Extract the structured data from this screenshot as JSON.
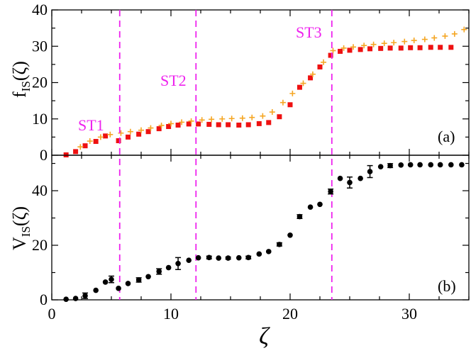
{
  "chart_data": [
    {
      "type": "scatter",
      "panel": "(a)",
      "ylabel": "f",
      "ylabel_sub": "IS",
      "ylabel_arg": "(ζ)",
      "xlim": [
        0,
        35
      ],
      "ylim": [
        0,
        40
      ],
      "yticks": [
        0,
        10,
        20,
        30,
        40
      ],
      "series": [
        {
          "name": "squares",
          "marker": "square",
          "color": "#ee1111",
          "x": [
            1.2,
            2.0,
            2.8,
            3.7,
            4.5,
            5.6,
            6.4,
            7.3,
            8.1,
            9.0,
            9.8,
            10.6,
            11.5,
            12.3,
            13.2,
            14.0,
            14.8,
            15.7,
            16.5,
            17.4,
            18.2,
            19.1,
            20.0,
            20.8,
            21.7,
            22.5,
            23.4,
            24.2,
            25.0,
            25.9,
            26.7,
            27.6,
            28.4,
            29.3,
            30.1,
            30.9,
            31.8,
            32.6,
            33.5
          ],
          "y": [
            0.1,
            1.0,
            2.6,
            3.8,
            5.3,
            4.0,
            5.0,
            5.8,
            6.5,
            7.3,
            7.9,
            8.3,
            8.6,
            8.6,
            8.5,
            8.4,
            8.4,
            8.3,
            8.4,
            8.7,
            9.0,
            10.6,
            13.9,
            18.7,
            21.3,
            24.3,
            27.5,
            28.6,
            28.9,
            29.1,
            29.3,
            29.4,
            29.5,
            29.5,
            29.6,
            29.6,
            29.7,
            29.7,
            29.7
          ]
        },
        {
          "name": "plus",
          "marker": "plus",
          "color": "#f5a623",
          "x": [
            2.4,
            3.2,
            4.1,
            4.9,
            5.8,
            6.6,
            7.5,
            8.3,
            9.2,
            10.0,
            10.9,
            11.7,
            12.6,
            13.4,
            14.3,
            15.1,
            16.0,
            16.8,
            17.7,
            18.5,
            19.4,
            20.2,
            21.1,
            21.9,
            22.8,
            23.6,
            24.5,
            25.3,
            26.2,
            27.0,
            27.9,
            28.7,
            29.6,
            30.4,
            31.3,
            32.1,
            33.0,
            33.8,
            34.6
          ],
          "y": [
            2.3,
            3.9,
            5.0,
            5.7,
            6.1,
            6.5,
            6.9,
            7.5,
            8.2,
            8.7,
            9.1,
            9.4,
            9.7,
            9.9,
            10.0,
            10.1,
            10.2,
            10.4,
            10.8,
            11.9,
            14.5,
            17.0,
            19.8,
            22.3,
            25.6,
            28.8,
            29.5,
            29.8,
            30.2,
            30.5,
            30.8,
            31.0,
            31.3,
            31.6,
            31.9,
            32.3,
            32.8,
            33.4,
            34.6
          ]
        }
      ],
      "annotations": [
        "ST1",
        "ST2",
        "ST3"
      ],
      "annotation_color": "#ee22ee"
    },
    {
      "type": "scatter",
      "panel": "(b)",
      "xlabel": "ζ",
      "ylabel": "V",
      "ylabel_sub": "IS",
      "ylabel_arg": "(ζ)",
      "xlim": [
        0,
        35
      ],
      "ylim": [
        0,
        53
      ],
      "yticks": [
        0,
        20,
        40
      ],
      "xticks": [
        0,
        10,
        20,
        30
      ],
      "series": [
        {
          "name": "circles",
          "marker": "circle",
          "color": "#000000",
          "x": [
            1.2,
            2.0,
            2.8,
            3.7,
            4.5,
            5.0,
            5.6,
            6.4,
            7.3,
            8.1,
            9.0,
            9.8,
            10.6,
            11.5,
            12.3,
            13.2,
            14.0,
            14.8,
            15.7,
            16.5,
            17.4,
            18.2,
            19.1,
            20.0,
            20.8,
            21.7,
            22.5,
            23.4,
            24.2,
            25.0,
            25.9,
            26.7,
            27.6,
            28.4,
            29.3,
            30.1,
            30.9,
            31.8,
            32.6,
            33.5,
            34.4
          ],
          "y": [
            0.2,
            0.5,
            1.5,
            3.5,
            6.5,
            7.5,
            4.2,
            6.0,
            7.3,
            8.5,
            10.4,
            11.8,
            13.3,
            14.5,
            15.4,
            15.5,
            15.3,
            15.3,
            15.4,
            15.5,
            16.8,
            17.7,
            20.3,
            23.7,
            30.5,
            34.0,
            35.0,
            39.7,
            44.5,
            43.0,
            44.5,
            47.0,
            48.8,
            49.2,
            49.4,
            49.5,
            49.5,
            49.5,
            49.5,
            49.5,
            49.5
          ],
          "err": [
            0,
            0,
            1.0,
            0,
            0,
            1.2,
            0,
            0,
            0.8,
            0,
            1.0,
            0,
            2.2,
            0,
            0,
            0.5,
            0,
            0.4,
            0,
            0.5,
            0,
            0,
            0.6,
            0,
            0.7,
            0,
            0,
            0.9,
            0,
            2.0,
            0,
            2.2,
            0,
            0.7,
            0,
            0,
            0,
            0,
            0,
            0,
            0
          ]
        }
      ],
      "vlines": [
        5.7,
        12.1,
        23.5
      ],
      "vline_color": "#ee22ee"
    }
  ]
}
